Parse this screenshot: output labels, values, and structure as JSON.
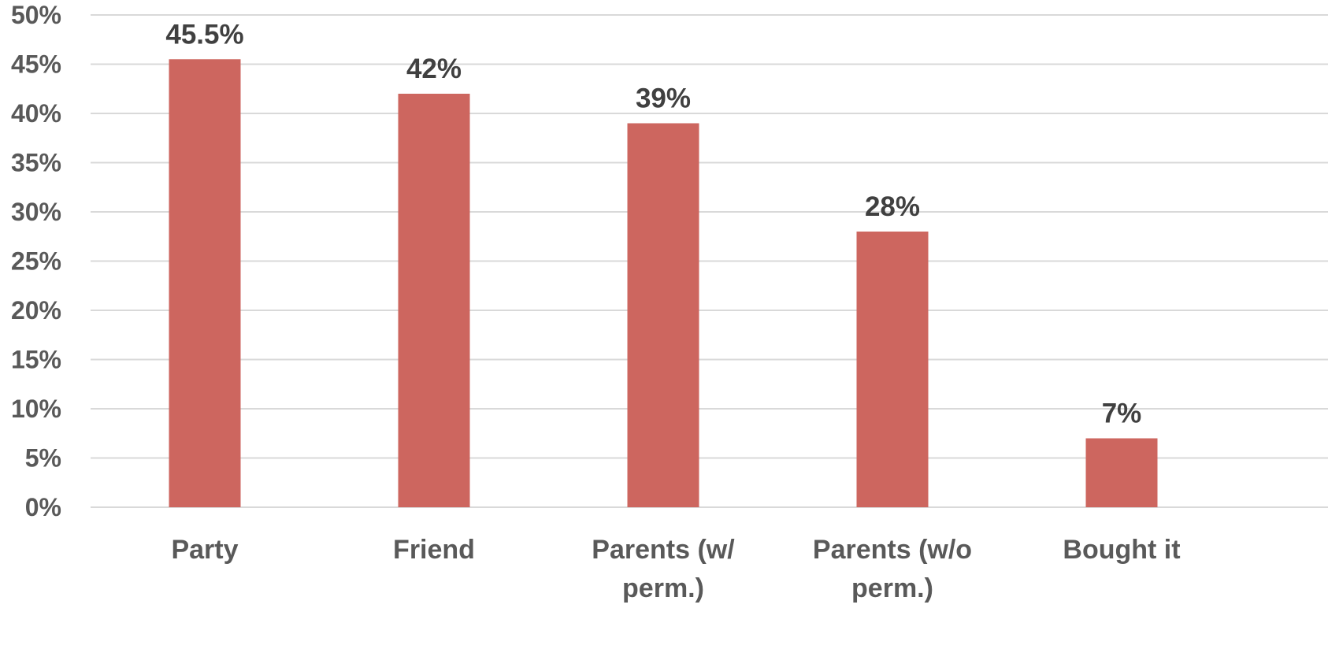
{
  "chart_data": {
    "type": "bar",
    "categories": [
      "Party",
      "Friend",
      "Parents (w/ perm.)",
      "Parents (w/o perm.)",
      "Bought it"
    ],
    "category_lines": [
      [
        "Party"
      ],
      [
        "Friend"
      ],
      [
        "Parents (w/",
        "perm.)"
      ],
      [
        "Parents (w/o",
        "perm.)"
      ],
      [
        "Bought it"
      ]
    ],
    "values": [
      45.5,
      42,
      39,
      28,
      7
    ],
    "data_labels": [
      "45.5%",
      "42%",
      "39%",
      "28%",
      "7%"
    ],
    "yticks": [
      0,
      5,
      10,
      15,
      20,
      25,
      30,
      35,
      40,
      45,
      50
    ],
    "ytick_labels": [
      "0%",
      "5%",
      "10%",
      "15%",
      "20%",
      "25%",
      "30%",
      "35%",
      "40%",
      "45%",
      "50%"
    ],
    "ylim": [
      0,
      50
    ],
    "title": "",
    "xlabel": "",
    "ylabel": "",
    "grid": true,
    "legend": "none",
    "bar_color": "#cd665f"
  }
}
